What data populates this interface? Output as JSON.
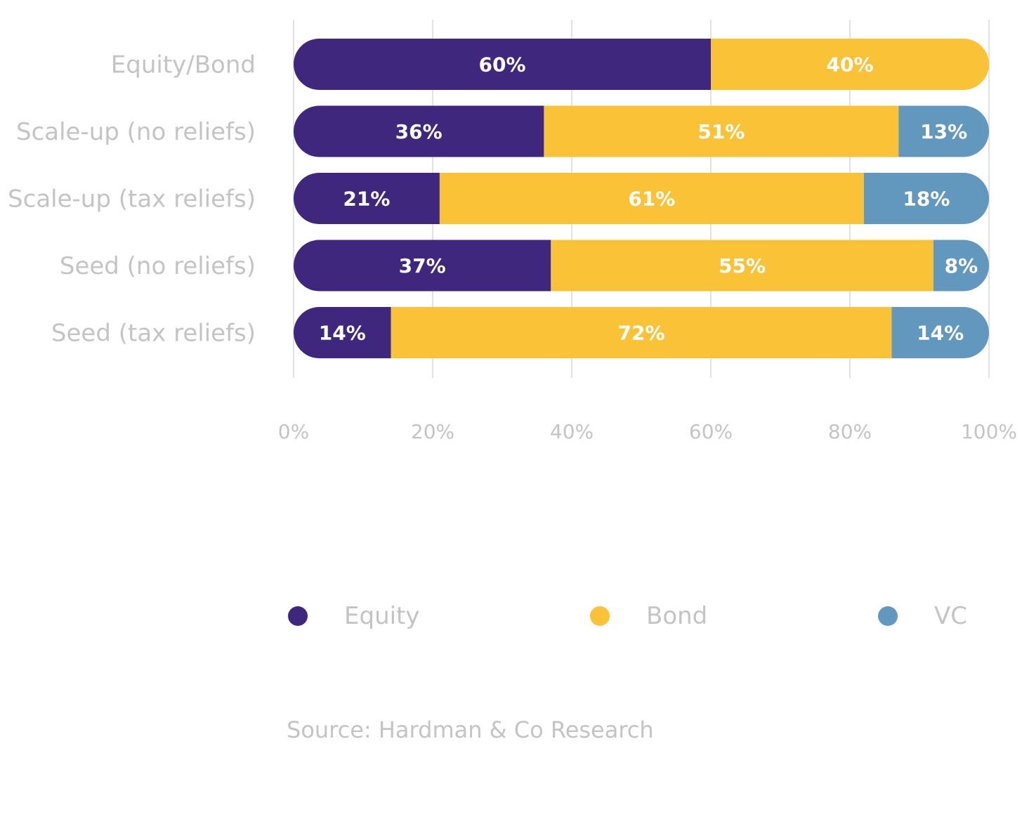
{
  "chart_data": {
    "type": "bar",
    "orientation": "horizontal",
    "stacked": true,
    "categories": [
      "Equity/Bond",
      "Scale-up (no reliefs)",
      "Scale-up (tax reliefs)",
      "Seed (no reliefs)",
      "Seed (tax reliefs)"
    ],
    "series": [
      {
        "name": "Equity",
        "color": "#3f277e",
        "values": [
          60,
          36,
          21,
          37,
          14
        ],
        "labels": [
          "60%",
          "36%",
          "21%",
          "37%",
          "14%"
        ]
      },
      {
        "name": "Bond",
        "color": "#f9c237",
        "values": [
          40,
          51,
          61,
          55,
          72
        ],
        "labels": [
          "40%",
          "51%",
          "61%",
          "55%",
          "72%"
        ]
      },
      {
        "name": "VC",
        "color": "#6298be",
        "values": [
          0,
          13,
          18,
          8,
          14
        ],
        "labels": [
          "",
          "13%",
          "18%",
          "8%",
          "14%"
        ]
      }
    ],
    "xlim": [
      0,
      100
    ],
    "xticks": [
      0,
      20,
      40,
      60,
      80,
      100
    ],
    "xtick_labels": [
      "0%",
      "20%",
      "40%",
      "60%",
      "80%",
      "100%"
    ],
    "grid": true,
    "legend_position": "bottom",
    "title": "",
    "xlabel": "",
    "ylabel": ""
  },
  "source": "Source: Hardman & Co Research"
}
